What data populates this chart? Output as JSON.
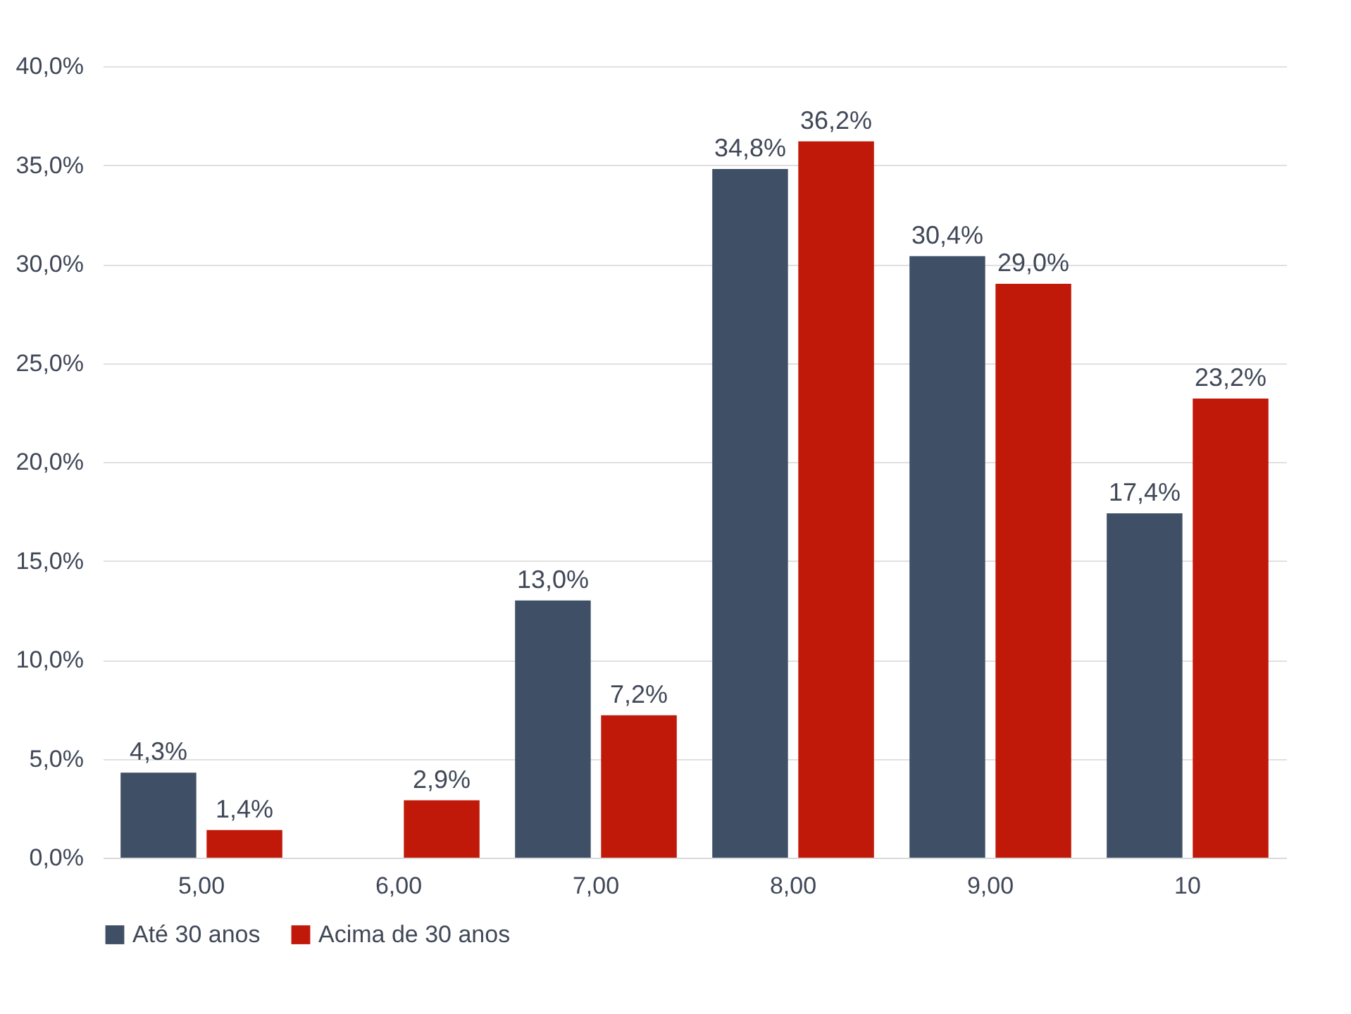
{
  "chart_data": {
    "type": "bar",
    "categories": [
      "5,00",
      "6,00",
      "7,00",
      "8,00",
      "9,00",
      "10"
    ],
    "series": [
      {
        "name": "Até 30 anos",
        "color": "#3f4f66",
        "values": [
          4.3,
          null,
          13.0,
          34.8,
          30.4,
          17.4
        ],
        "value_labels": [
          "4,3%",
          null,
          "13,0%",
          "34,8%",
          "30,4%",
          "17,4%"
        ]
      },
      {
        "name": "Acima de 30 anos",
        "color": "#c0190a",
        "values": [
          1.4,
          2.9,
          7.2,
          36.2,
          29.0,
          23.2
        ],
        "value_labels": [
          "1,4%",
          "2,9%",
          "7,2%",
          "36,2%",
          "29,0%",
          "23,2%"
        ]
      }
    ],
    "ylim": [
      0,
      40
    ],
    "yticks": [
      {
        "value": 0,
        "label": "0,0%"
      },
      {
        "value": 5,
        "label": "5,0%"
      },
      {
        "value": 10,
        "label": "10,0%"
      },
      {
        "value": 15,
        "label": "15,0%"
      },
      {
        "value": 20,
        "label": "20,0%"
      },
      {
        "value": 25,
        "label": "25,0%"
      },
      {
        "value": 30,
        "label": "30,0%"
      },
      {
        "value": 35,
        "label": "35,0%"
      },
      {
        "value": 40,
        "label": "40,0%"
      }
    ],
    "grid": "y",
    "legend": "bottom"
  }
}
